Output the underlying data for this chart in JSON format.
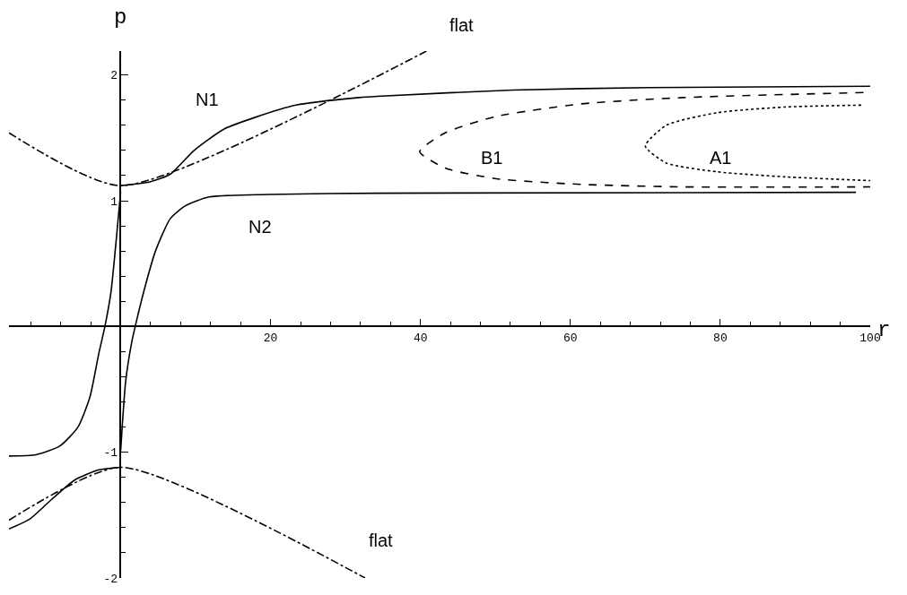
{
  "chart_data": {
    "type": "line",
    "xlabel": "r",
    "ylabel": "p",
    "xlim": [
      -14.9,
      100
    ],
    "ylim": [
      -2,
      2.19
    ],
    "xticks": [
      {
        "value": -12,
        "label": null
      },
      {
        "value": -8,
        "label": null
      },
      {
        "value": -4,
        "label": null
      },
      {
        "value": 4,
        "label": null
      },
      {
        "value": 8,
        "label": null
      },
      {
        "value": 12,
        "label": null
      },
      {
        "value": 16,
        "label": null
      },
      20,
      {
        "value": 24,
        "label": null
      },
      {
        "value": 28,
        "label": null
      },
      {
        "value": 32,
        "label": null
      },
      {
        "value": 36,
        "label": null
      },
      40,
      {
        "value": 44,
        "label": null
      },
      {
        "value": 48,
        "label": null
      },
      {
        "value": 52,
        "label": null
      },
      {
        "value": 56,
        "label": null
      },
      60,
      {
        "value": 64,
        "label": null
      },
      {
        "value": 68,
        "label": null
      },
      {
        "value": 72,
        "label": null
      },
      {
        "value": 76,
        "label": null
      },
      80,
      {
        "value": 84,
        "label": null
      },
      {
        "value": 88,
        "label": null
      },
      {
        "value": 92,
        "label": null
      },
      {
        "value": 96,
        "label": null
      },
      100
    ],
    "yticks": [
      -2,
      {
        "value": -1.8,
        "label": null
      },
      {
        "value": -1.6,
        "label": null
      },
      {
        "value": -1.4,
        "label": null
      },
      {
        "value": -1.2,
        "label": null
      },
      -1,
      {
        "value": -0.8,
        "label": null
      },
      {
        "value": -0.6,
        "label": null
      },
      {
        "value": -0.4,
        "label": null
      },
      {
        "value": -0.2,
        "label": null
      },
      {
        "value": 0.2,
        "label": null
      },
      {
        "value": 0.4,
        "label": null
      },
      {
        "value": 0.6,
        "label": null
      },
      {
        "value": 0.8,
        "label": null
      },
      1,
      {
        "value": 1.2,
        "label": null
      },
      {
        "value": 1.4,
        "label": null
      },
      {
        "value": 1.6,
        "label": null
      },
      {
        "value": 1.8,
        "label": null
      },
      2
    ],
    "series": [
      {
        "color": "#000000",
        "line_style": "solid",
        "x": [
          0,
          3.9,
          6.6,
          9.8,
          13.8,
          17.8,
          23.4,
          31.8,
          34.2,
          52.3,
          70.5,
          100
        ],
        "values": [
          1.12,
          1.15,
          1.21,
          1.4,
          1.57,
          1.66,
          1.76,
          1.82,
          1.83,
          1.88,
          1.9,
          1.91
        ]
      },
      {
        "color": "#000000",
        "line_style": "solid",
        "x": [
          -14.9,
          -12.1,
          -9.3,
          -6.1,
          -2.9,
          0
        ],
        "values": [
          -1.61,
          -1.53,
          -1.38,
          -1.22,
          -1.14,
          -1.12
        ]
      },
      {
        "color": "#000000",
        "line_style": "solid",
        "x": [
          -14.9,
          -11.3,
          -8.1,
          -5.7,
          -4.1,
          -2.9,
          -2.1,
          -1.3,
          -0.54,
          0
        ],
        "values": [
          -1.03,
          -1.02,
          -0.95,
          -0.8,
          -0.56,
          -0.21,
          0.0,
          0.27,
          0.72,
          1.07
        ]
      },
      {
        "color": "#000000",
        "line_style": "solid",
        "x": [
          0,
          0.66,
          1.46,
          2.06,
          3.05,
          4.65,
          6.65,
          8.65,
          11.8,
          19.8,
          34.2,
          98.1
        ],
        "values": [
          -0.99,
          -0.44,
          -0.13,
          0.03,
          0.27,
          0.6,
          0.86,
          0.96,
          1.03,
          1.05,
          1.06,
          1.067
        ]
      },
      {
        "color": "#000000",
        "line_style": "dashed",
        "x": [
          99.1,
          75.0,
          61.4,
          50.1,
          43.3,
          39.9,
          43.3,
          50.1,
          61.4,
          75.0,
          100
        ],
        "values": [
          1.86,
          1.82,
          1.77,
          1.67,
          1.54,
          1.39,
          1.26,
          1.175,
          1.13,
          1.11,
          1.11
        ]
      },
      {
        "color": "#000000",
        "line_style": "dotted",
        "x": [
          98.8,
          88.6,
          79.6,
          72.8,
          70.0,
          72.8,
          79.6,
          88.6,
          100
        ],
        "values": [
          1.76,
          1.745,
          1.7,
          1.6,
          1.435,
          1.3,
          1.23,
          1.19,
          1.16
        ]
      },
      {
        "color": "#000000",
        "line_style": "dashdot",
        "x": [
          -14.9,
          0,
          40.8
        ],
        "values": [
          1.54,
          1.12,
          2.19
        ]
      },
      {
        "color": "#000000",
        "line_style": "dashdot",
        "x": [
          -14.9,
          0,
          32.6
        ],
        "values": [
          -1.54,
          -1.12,
          -2.0
        ]
      }
    ],
    "annotations": [
      "flat",
      "N1",
      "B1",
      "A1",
      "N2",
      "flat"
    ]
  }
}
